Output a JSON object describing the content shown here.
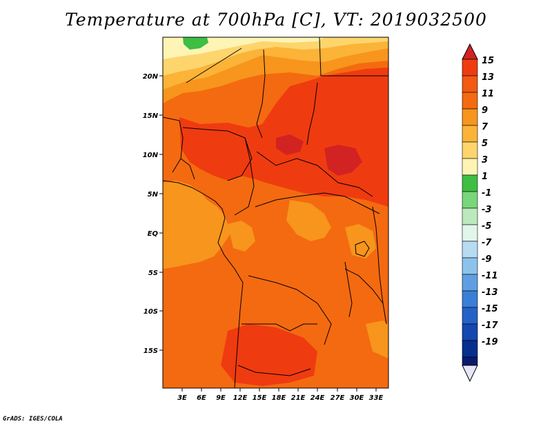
{
  "title": "Temperature at 700hPa [C], VT: 2019032500",
  "credit": "GrADS: IGES/COLA",
  "colors": {
    "c15": "#d22222",
    "c13": "#ef3b10",
    "c11": "#f46a10",
    "c9": "#f7951c",
    "c7": "#fbb338",
    "c5": "#fdd56c",
    "c3": "#fdf4b5",
    "c1": "#3ebe42",
    "cm1": "#7ad67a",
    "cm3": "#bce9bc",
    "cm5": "#e2f5ea",
    "cm7": "#b7dcf2",
    "cm9": "#8cc3ec",
    "cm11": "#5f9fe1",
    "cm13": "#3a7fd6",
    "cm15": "#2462c8",
    "cm17": "#1447b0",
    "cm19": "#062f8e",
    "cm21": "#0a1a6e",
    "under": "#e6e6fa"
  },
  "chart_data": {
    "type": "heatmap",
    "title": "Temperature at 700hPa [C], VT: 2019032500",
    "units": "C",
    "x_ticks": [
      "3E",
      "6E",
      "9E",
      "12E",
      "15E",
      "18E",
      "21E",
      "24E",
      "27E",
      "30E",
      "33E"
    ],
    "y_ticks": [
      "20N",
      "15N",
      "10N",
      "5N",
      "EQ",
      "5S",
      "10S",
      "15S"
    ],
    "colorbar_labels": [
      "15",
      "13",
      "11",
      "9",
      "7",
      "5",
      "3",
      "1",
      "-1",
      "-3",
      "-5",
      "-7",
      "-9",
      "-11",
      "-13",
      "-15",
      "-17",
      "-19"
    ],
    "xlim_deg": [
      0,
      35
    ],
    "ylim_deg": [
      -20,
      24
    ]
  }
}
